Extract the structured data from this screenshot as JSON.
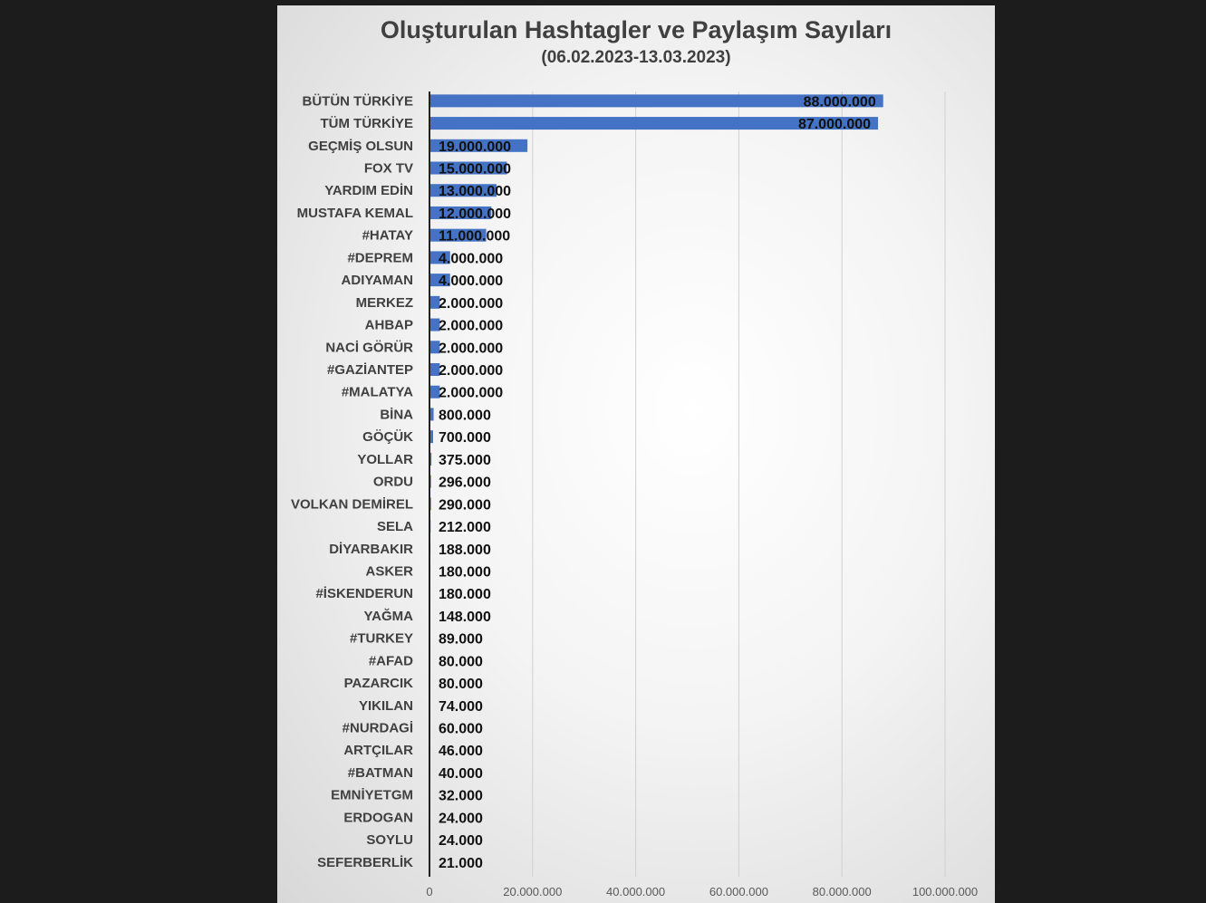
{
  "chart_data": {
    "type": "bar",
    "orientation": "horizontal",
    "title": "Oluşturulan Hashtagler ve Paylaşım Sayıları",
    "subtitle": "(06.02.2023-13.03.2023)",
    "xlabel": "",
    "ylabel": "",
    "xlim": [
      0,
      100000000
    ],
    "x_ticks": [
      0,
      20000000,
      40000000,
      60000000,
      80000000,
      100000000
    ],
    "x_tick_labels": [
      "0",
      "20.000.000",
      "40.000.000",
      "60.000.000",
      "80.000.000",
      "100.000.000"
    ],
    "grid": "vertical",
    "legend": "none",
    "bar_color": "#4472c4",
    "categories": [
      "BÜTÜN TÜRKİYE",
      "TÜM TÜRKİYE",
      "GEÇMİŞ OLSUN",
      "FOX TV",
      "YARDIM EDİN",
      "MUSTAFA KEMAL",
      "#HATAY",
      "#DEPREM",
      "ADIYAMAN",
      "MERKEZ",
      "AHBAP",
      "NACİ GÖRÜR",
      "#GAZİANTEP",
      "#MALATYA",
      "BİNA",
      "GÖÇÜK",
      "YOLLAR",
      "ORDU",
      "VOLKAN DEMİREL",
      "SELA",
      "DİYARBAKIR",
      "ASKER",
      "#İSKENDERUN",
      "YAĞMA",
      "#TURKEY",
      "#AFAD",
      "PAZARCIK",
      "YIKILAN",
      "#NURDAGİ",
      "ARTÇILAR",
      "#BATMAN",
      "EMNİYETGM",
      "ERDOGAN",
      "SOYLU",
      "SEFERBERLİK"
    ],
    "values": [
      88000000,
      87000000,
      19000000,
      15000000,
      13000000,
      12000000,
      11000000,
      4000000,
      4000000,
      2000000,
      2000000,
      2000000,
      2000000,
      2000000,
      800000,
      700000,
      375000,
      296000,
      290000,
      212000,
      188000,
      180000,
      180000,
      148000,
      89000,
      80000,
      80000,
      74000,
      60000,
      46000,
      40000,
      32000,
      24000,
      24000,
      21000
    ],
    "value_labels": [
      "88.000.000",
      "87.000.000",
      "19.000.000",
      "15.000.000",
      "13.000.000",
      "12.000.000",
      "11.000.000",
      "4.000.000",
      "4.000.000",
      "2.000.000",
      "2.000.000",
      "2.000.000",
      "2.000.000",
      "2.000.000",
      "800.000",
      "700.000",
      "375.000",
      "296.000",
      "290.000",
      "212.000",
      "188.000",
      "180.000",
      "180.000",
      "148.000",
      "89.000",
      "80.000",
      "80.000",
      "74.000",
      "60.000",
      "46.000",
      "40.000",
      "32.000",
      "24.000",
      "24.000",
      "21.000"
    ]
  }
}
